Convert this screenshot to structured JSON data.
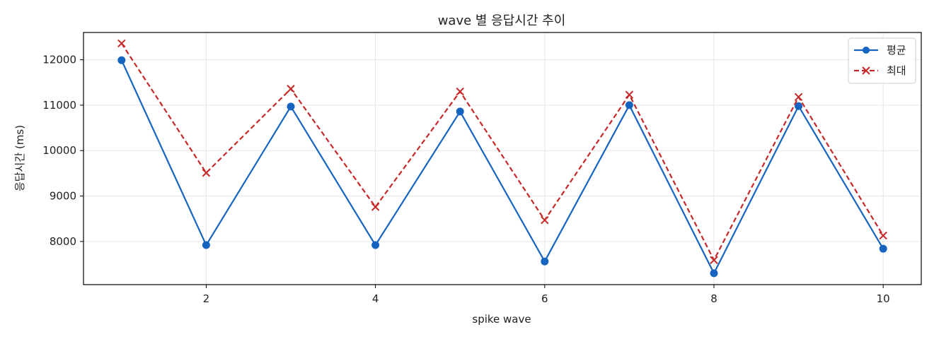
{
  "chart_data": {
    "type": "line",
    "title": "wave 별 응답시간 추이",
    "xlabel": "spike wave",
    "ylabel": "응답시간 (ms)",
    "x": [
      1,
      2,
      3,
      4,
      5,
      6,
      7,
      8,
      9,
      10
    ],
    "xticks": [
      2,
      4,
      6,
      8,
      10
    ],
    "yticks": [
      8000,
      9000,
      10000,
      11000,
      12000
    ],
    "xlim": [
      0.55,
      10.45
    ],
    "ylim": [
      7050,
      12600
    ],
    "grid": true,
    "legend_position": "top-right",
    "series": [
      {
        "name": "평균",
        "marker": "circle",
        "line_style": "solid",
        "color": "#1565c0",
        "values": [
          11990,
          7920,
          10970,
          7920,
          10860,
          7560,
          11000,
          7300,
          10980,
          7840
        ]
      },
      {
        "name": "최대",
        "marker": "x",
        "line_style": "dashed",
        "color": "#c62828",
        "values": [
          12360,
          9510,
          11360,
          8760,
          11300,
          8470,
          11230,
          7590,
          11180,
          8130
        ]
      }
    ]
  }
}
